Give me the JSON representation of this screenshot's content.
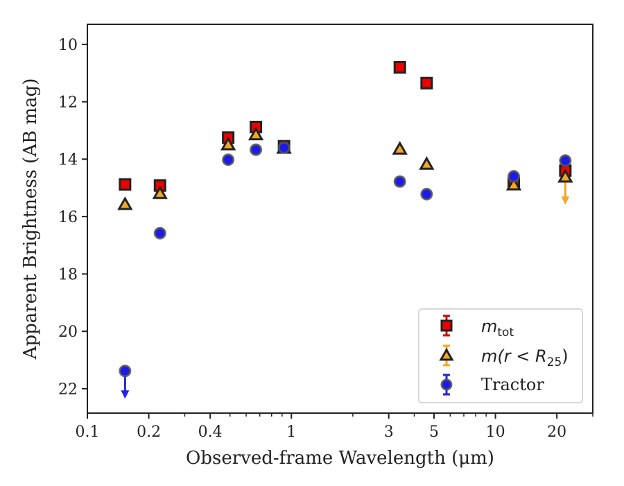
{
  "chart_data": {
    "type": "scatter",
    "xlabel": "Observed-frame Wavelength (μm)",
    "ylabel": "Apparent Brightness (AB mag)",
    "xscale": "log",
    "xlim": [
      0.1,
      30
    ],
    "ylim": [
      22.85,
      9.3
    ],
    "y_inverted": true,
    "x_ticks": [
      {
        "value": 0.1,
        "label": "0.1"
      },
      {
        "value": 0.2,
        "label": "0.2"
      },
      {
        "value": 0.4,
        "label": "0.4"
      },
      {
        "value": 1,
        "label": "1"
      },
      {
        "value": 3,
        "label": "3"
      },
      {
        "value": 5,
        "label": "5"
      },
      {
        "value": 10,
        "label": "10"
      },
      {
        "value": 20,
        "label": "20"
      }
    ],
    "y_ticks": [
      {
        "value": 10,
        "label": "10"
      },
      {
        "value": 12,
        "label": "12"
      },
      {
        "value": 14,
        "label": "14"
      },
      {
        "value": 16,
        "label": "16"
      },
      {
        "value": 18,
        "label": "18"
      },
      {
        "value": 20,
        "label": "20"
      },
      {
        "value": 22,
        "label": "22"
      }
    ],
    "legend_position": "lower-right",
    "series": [
      {
        "name": "m_tot",
        "legend_label": {
          "base": "m",
          "sub": "tot"
        },
        "marker": "square",
        "color": "#ee0000",
        "edge_color": "#222222",
        "error_color": "#dd0000",
        "points": [
          {
            "x": 0.153,
            "y": 14.88
          },
          {
            "x": 0.227,
            "y": 14.92
          },
          {
            "x": 0.49,
            "y": 13.25
          },
          {
            "x": 0.67,
            "y": 12.88
          },
          {
            "x": 0.92,
            "y": 13.55
          },
          {
            "x": 3.4,
            "y": 10.8
          },
          {
            "x": 4.6,
            "y": 11.35
          },
          {
            "x": 12.3,
            "y": 14.85
          },
          {
            "x": 22.0,
            "y": 14.4
          }
        ]
      },
      {
        "name": "m(r < R_25)",
        "legend_label": {
          "pre": "m(r < R",
          "sub": "25",
          "post": ")"
        },
        "marker": "triangle",
        "color": "#f5a623",
        "edge_color": "#222222",
        "error_color": "#f5a623",
        "points": [
          {
            "x": 0.153,
            "y": 15.58
          },
          {
            "x": 0.227,
            "y": 15.2
          },
          {
            "x": 0.49,
            "y": 13.5
          },
          {
            "x": 0.67,
            "y": 13.15
          },
          {
            "x": 0.92,
            "y": 13.62
          },
          {
            "x": 3.4,
            "y": 13.65
          },
          {
            "x": 4.6,
            "y": 14.18
          },
          {
            "x": 12.3,
            "y": 14.9
          },
          {
            "x": 22.0,
            "y": 14.62,
            "upper_limit": true
          }
        ]
      },
      {
        "name": "Tractor",
        "legend_label": {
          "base": "Tractor"
        },
        "marker": "circle",
        "color": "#1a1aee",
        "edge_color": "#555555",
        "error_color": "#2222ee",
        "points": [
          {
            "x": 0.153,
            "y": 21.38,
            "upper_limit": true
          },
          {
            "x": 0.227,
            "y": 16.58
          },
          {
            "x": 0.49,
            "y": 14.02
          },
          {
            "x": 0.67,
            "y": 13.67
          },
          {
            "x": 0.92,
            "y": 13.6
          },
          {
            "x": 3.4,
            "y": 14.78
          },
          {
            "x": 4.6,
            "y": 15.22
          },
          {
            "x": 12.3,
            "y": 14.6
          },
          {
            "x": 22.0,
            "y": 14.05
          }
        ]
      }
    ]
  }
}
